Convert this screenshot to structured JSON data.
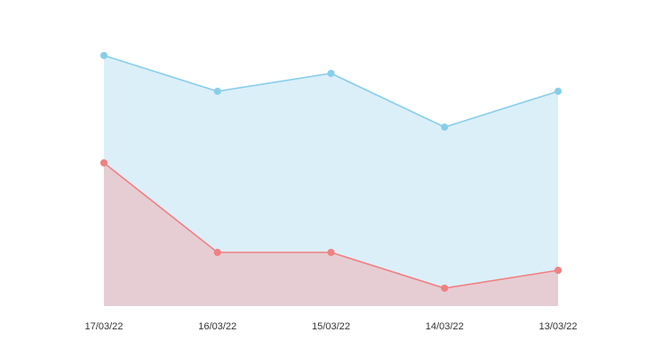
{
  "chart_data": {
    "type": "area",
    "categories": [
      "17/03/22",
      "16/03/22",
      "15/03/22",
      "14/03/22",
      "13/03/22"
    ],
    "series": [
      {
        "values": [
          14,
          12,
          13,
          10,
          12
        ],
        "line_color": "#87ceeb",
        "fill_color": "#dbeff9"
      },
      {
        "values": [
          8,
          3,
          3,
          1,
          2
        ],
        "line_color": "#f08080",
        "fill_color": "#e6cdd4"
      }
    ],
    "title": "",
    "xlabel": "",
    "ylabel": "",
    "ylim": [
      0,
      15
    ],
    "grid": false,
    "legend": "none",
    "y_axis_visible": false
  }
}
